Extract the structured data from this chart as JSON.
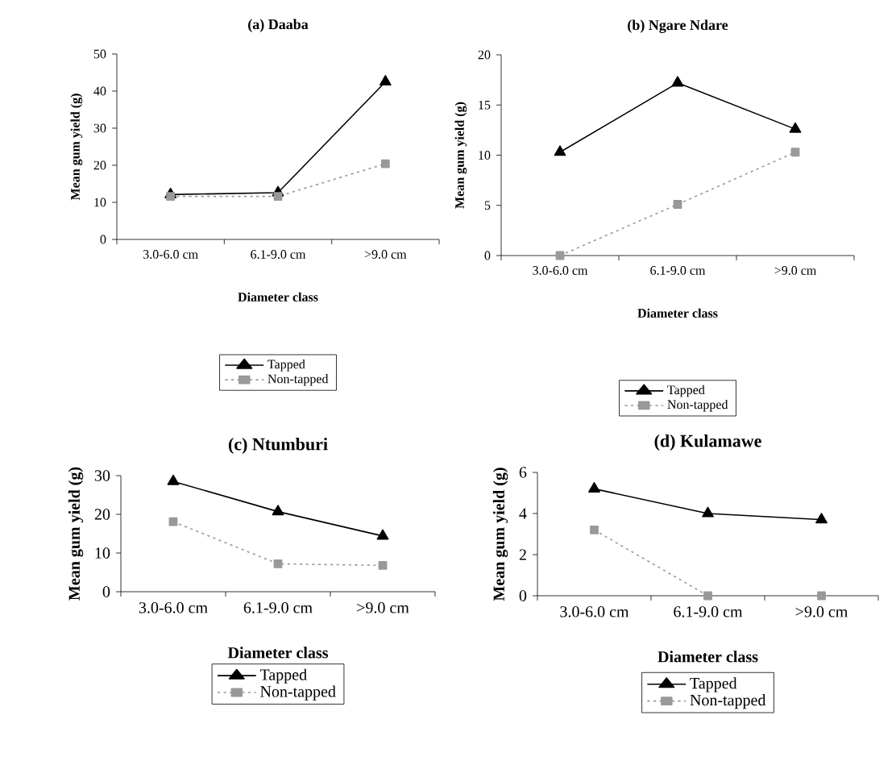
{
  "chart_data": [
    {
      "type": "line",
      "title": "(a) Daaba",
      "xlabel": "Diameter class",
      "ylabel": "Mean gum yield (g)",
      "categories": [
        "3.0-6.0 cm",
        "6.1-9.0 cm",
        ">9.0 cm"
      ],
      "ylim": [
        0,
        50
      ],
      "yticks": [
        0,
        10,
        20,
        30,
        40,
        50
      ],
      "legend": "bottom",
      "series": [
        {
          "name": "Tapped",
          "color": "#000000",
          "marker": "triangle",
          "line_style": "solid",
          "values": [
            12.1,
            12.6,
            42.5
          ]
        },
        {
          "name": "Non-tapped",
          "color": "#999999",
          "marker": "square",
          "line_style": "dotted",
          "values": [
            11.6,
            11.6,
            20.4
          ]
        }
      ]
    },
    {
      "type": "line",
      "title": "(b) Ngare Ndare",
      "xlabel": "Diameter class",
      "ylabel": "Mean gum yield (g)",
      "categories": [
        "3.0-6.0 cm",
        "6.1-9.0 cm",
        ">9.0 cm"
      ],
      "ylim": [
        0,
        20
      ],
      "yticks": [
        0,
        5,
        10,
        15,
        20
      ],
      "legend": "bottom",
      "series": [
        {
          "name": "Tapped",
          "color": "#000000",
          "marker": "triangle",
          "line_style": "solid",
          "values": [
            10.3,
            17.2,
            12.6
          ]
        },
        {
          "name": "Non-tapped",
          "color": "#999999",
          "marker": "square",
          "line_style": "dotted",
          "values": [
            0,
            5.1,
            10.3
          ]
        }
      ]
    },
    {
      "type": "line",
      "title": "(c) Ntumburi",
      "xlabel": "Diameter class",
      "ylabel": "Mean gum yield (g)",
      "categories": [
        "3.0-6.0 cm",
        "6.1-9.0 cm",
        ">9.0 cm"
      ],
      "ylim": [
        0,
        30
      ],
      "yticks": [
        0,
        10,
        20,
        30
      ],
      "legend": "bottom",
      "series": [
        {
          "name": "Tapped",
          "color": "#000000",
          "marker": "triangle",
          "line_style": "solid",
          "values": [
            28.5,
            20.7,
            14.4
          ]
        },
        {
          "name": "Non-tapped",
          "color": "#999999",
          "marker": "square",
          "line_style": "dotted",
          "values": [
            18.1,
            7.2,
            6.8
          ]
        }
      ]
    },
    {
      "type": "line",
      "title": "(d) Kulamawe",
      "xlabel": "Diameter class",
      "ylabel": "Mean gum yield (g)",
      "categories": [
        "3.0-6.0 cm",
        "6.1-9.0 cm",
        ">9.0 cm"
      ],
      "ylim": [
        0,
        6
      ],
      "yticks": [
        0,
        2,
        4,
        6
      ],
      "legend": "bottom",
      "series": [
        {
          "name": "Tapped",
          "color": "#000000",
          "marker": "triangle",
          "line_style": "solid",
          "values": [
            5.2,
            4.0,
            3.7
          ]
        },
        {
          "name": "Non-tapped",
          "color": "#999999",
          "marker": "square",
          "line_style": "dotted",
          "values": [
            3.2,
            0,
            0
          ]
        }
      ]
    }
  ]
}
